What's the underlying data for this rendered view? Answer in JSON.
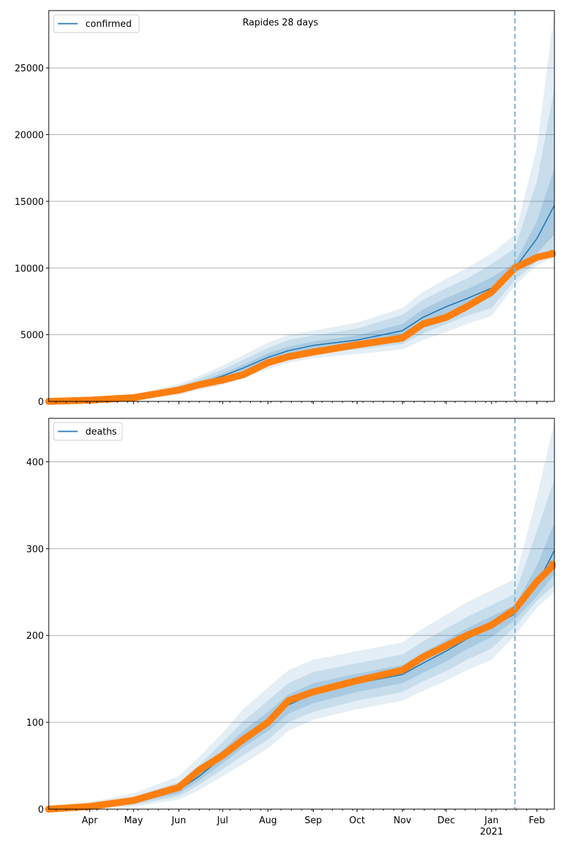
{
  "chart_data": [
    {
      "type": "line",
      "title": "Rapides 28 days",
      "legend": {
        "label": "confirmed",
        "placement": "top-left"
      },
      "yticks": [
        0,
        5000,
        10000,
        15000,
        20000,
        25000
      ],
      "ylim": [
        0,
        29300
      ],
      "forecast_start": "2021-01-17",
      "x_dates": [
        "2020-03-04",
        "2020-04-01",
        "2020-05-01",
        "2020-06-01",
        "2020-06-15",
        "2020-07-01",
        "2020-07-15",
        "2020-08-01",
        "2020-08-15",
        "2020-09-01",
        "2020-10-01",
        "2020-11-01",
        "2020-11-15",
        "2020-12-01",
        "2020-12-15",
        "2021-01-01",
        "2021-01-17",
        "2021-02-01",
        "2021-02-13"
      ],
      "series": [
        {
          "name": "confirmed model",
          "values": [
            0,
            80,
            300,
            900,
            1350,
            1900,
            2500,
            3300,
            3800,
            4200,
            4600,
            5300,
            6300,
            7100,
            7700,
            8500,
            10000,
            12200,
            14700
          ]
        },
        {
          "name": "band 1 high",
          "values": [
            0,
            100,
            350,
            1000,
            1500,
            2100,
            2750,
            3600,
            4100,
            4500,
            4950,
            5800,
            6900,
            7750,
            8400,
            9300,
            10400,
            13500,
            17500
          ]
        },
        {
          "name": "band 1 low",
          "values": [
            0,
            60,
            260,
            800,
            1200,
            1700,
            2250,
            3000,
            3500,
            3900,
            4300,
            4800,
            5700,
            6500,
            7100,
            7800,
            9700,
            11100,
            12500
          ]
        },
        {
          "name": "band 2 high",
          "values": [
            0,
            130,
            420,
            1150,
            1700,
            2400,
            3100,
            4000,
            4600,
            4950,
            5450,
            6500,
            7600,
            8500,
            9200,
            10300,
            11500,
            16500,
            23500
          ]
        },
        {
          "name": "band 2 low",
          "values": [
            0,
            40,
            200,
            650,
            1000,
            1450,
            1950,
            2700,
            3200,
            3550,
            3900,
            4300,
            5100,
            5800,
            6400,
            7000,
            9100,
            10500,
            11200
          ]
        },
        {
          "name": "band 3 high",
          "values": [
            0,
            160,
            500,
            1300,
            1900,
            2700,
            3450,
            4400,
            5000,
            5300,
            5900,
            7000,
            8200,
            9200,
            10000,
            11100,
            12500,
            19000,
            29300
          ]
        },
        {
          "name": "band 3 low",
          "values": [
            0,
            20,
            150,
            500,
            850,
            1250,
            1700,
            2400,
            2900,
            3250,
            3550,
            3900,
            4600,
            5200,
            5800,
            6400,
            8700,
            10200,
            10800
          ]
        },
        {
          "name": "observed",
          "values": [
            0,
            90,
            280,
            850,
            1250,
            1600,
            2000,
            2900,
            3350,
            3700,
            4250,
            4750,
            5800,
            6300,
            7100,
            8200,
            10000,
            10800,
            11100
          ]
        }
      ]
    },
    {
      "type": "line",
      "title": "",
      "legend": {
        "label": "deaths",
        "placement": "top-left"
      },
      "xticks": [
        "Apr",
        "May",
        "Jun",
        "Jul",
        "Aug",
        "Sep",
        "Oct",
        "Nov",
        "Dec",
        "Jan\n2021",
        "Feb"
      ],
      "yticks": [
        0,
        100,
        200,
        300,
        400
      ],
      "ylim": [
        0,
        450
      ],
      "forecast_start": "2021-01-17",
      "x_dates": [
        "2020-03-04",
        "2020-04-01",
        "2020-05-01",
        "2020-06-01",
        "2020-06-15",
        "2020-07-01",
        "2020-07-15",
        "2020-08-01",
        "2020-08-15",
        "2020-09-01",
        "2020-10-01",
        "2020-11-01",
        "2020-11-15",
        "2020-12-01",
        "2020-12-15",
        "2021-01-01",
        "2021-01-17",
        "2021-02-01",
        "2021-02-13"
      ],
      "series": [
        {
          "name": "deaths model",
          "values": [
            0,
            3,
            9,
            22,
            38,
            60,
            80,
            100,
            120,
            133,
            145,
            155,
            168,
            182,
            196,
            210,
            225,
            258,
            298
          ]
        },
        {
          "name": "band 1 high",
          "values": [
            0,
            4,
            11,
            26,
            44,
            68,
            90,
            112,
            132,
            145,
            156,
            166,
            180,
            195,
            208,
            222,
            235,
            280,
            330
          ]
        },
        {
          "name": "band 1 low",
          "values": [
            0,
            2,
            7,
            18,
            33,
            53,
            71,
            90,
            110,
            122,
            135,
            145,
            157,
            170,
            184,
            198,
            218,
            245,
            270
          ]
        },
        {
          "name": "band 2 high",
          "values": [
            1,
            6,
            14,
            31,
            51,
            77,
            101,
            125,
            145,
            158,
            168,
            178,
            193,
            208,
            221,
            235,
            248,
            320,
            380
          ]
        },
        {
          "name": "band 2 low",
          "values": [
            0,
            1,
            5,
            15,
            28,
            46,
            62,
            80,
            100,
            112,
            125,
            135,
            147,
            159,
            172,
            185,
            210,
            240,
            258
          ]
        },
        {
          "name": "band 3 high",
          "values": [
            3,
            8,
            18,
            38,
            60,
            88,
            115,
            140,
            160,
            172,
            182,
            192,
            208,
            224,
            238,
            252,
            265,
            360,
            445
          ]
        },
        {
          "name": "band 3 low",
          "values": [
            0,
            0,
            3,
            11,
            22,
            38,
            52,
            70,
            90,
            103,
            115,
            125,
            136,
            148,
            160,
            172,
            200,
            232,
            250
          ]
        },
        {
          "name": "observed",
          "values": [
            0,
            3,
            10,
            25,
            45,
            62,
            80,
            100,
            125,
            135,
            148,
            160,
            175,
            188,
            200,
            212,
            230,
            262,
            282
          ]
        }
      ]
    }
  ]
}
